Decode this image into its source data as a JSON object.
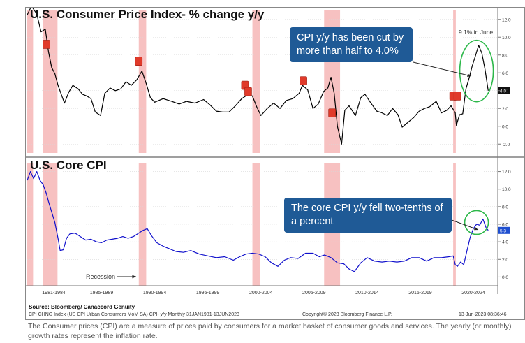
{
  "chart_data": [
    {
      "type": "line",
      "title": "U.S. Consumer Price Index- % change y/y",
      "ylim": [
        -3,
        13
      ],
      "yticks": [
        "12.0",
        "10.0",
        "8.0",
        "6.0",
        "4.0",
        "2.0",
        "0.0",
        "-2.0"
      ],
      "yticks_values": [
        12,
        10,
        8,
        6,
        4,
        2,
        0,
        -2
      ],
      "last_value_label": "4.0",
      "line_color": "#000000",
      "series": [
        {
          "x": [
            1980.0,
            1980.4,
            1980.9,
            1981.3,
            1981.7,
            1982.0,
            1982.3,
            1982.6,
            1982.9,
            1983.2,
            1983.5,
            1983.9,
            1984.3,
            1984.8,
            1985.2,
            1985.6,
            1986.0,
            1986.4,
            1986.9,
            1987.3,
            1987.8,
            1988.3,
            1988.8,
            1989.3,
            1989.8,
            1990.3,
            1990.8,
            1991.2,
            1991.6,
            1992.0,
            1992.8,
            1993.6,
            1994.3,
            1995.0,
            1995.8,
            1996.6,
            1997.2,
            1997.8,
            1998.4,
            1999.0,
            1999.6,
            2000.2,
            2000.7,
            2001.2,
            2001.6,
            2002.0,
            2002.6,
            2003.2,
            2003.8,
            2004.4,
            2005.0,
            2005.6,
            2005.9,
            2006.4,
            2006.9,
            2007.4,
            2007.9,
            2008.3,
            2008.6,
            2008.9,
            2009.2,
            2009.6,
            2009.9,
            2010.3,
            2010.9,
            2011.4,
            2011.8,
            2012.3,
            2012.9,
            2013.4,
            2013.9,
            2014.4,
            2014.9,
            2015.3,
            2015.9,
            2016.4,
            2016.9,
            2017.4,
            2017.9,
            2018.5,
            2019.0,
            2019.5,
            2019.9,
            2020.3,
            2020.4,
            2020.7,
            2021.0,
            2021.3,
            2021.6,
            2021.9,
            2022.2,
            2022.5,
            2022.8,
            2023.1,
            2023.4
          ],
          "values": [
            12.5,
            13.5,
            12.6,
            10.6,
            10.9,
            8.4,
            6.6,
            5.9,
            4.6,
            3.6,
            2.6,
            3.8,
            4.6,
            4.2,
            3.6,
            3.4,
            3.1,
            1.6,
            1.2,
            3.7,
            4.3,
            4.0,
            4.2,
            5.0,
            4.6,
            5.2,
            6.2,
            4.8,
            3.2,
            2.7,
            3.1,
            2.8,
            2.5,
            2.8,
            2.6,
            3.0,
            2.4,
            1.7,
            1.6,
            1.6,
            2.3,
            3.1,
            3.5,
            3.4,
            2.2,
            1.2,
            2.0,
            2.6,
            2.0,
            2.9,
            3.1,
            3.7,
            4.6,
            4.1,
            2.0,
            2.5,
            3.9,
            4.3,
            5.5,
            3.7,
            0.0,
            -2.0,
            1.8,
            2.3,
            1.2,
            3.2,
            3.6,
            2.7,
            1.7,
            1.5,
            1.2,
            2.0,
            1.3,
            -0.1,
            0.5,
            1.0,
            1.7,
            2.0,
            2.2,
            2.8,
            1.5,
            1.8,
            2.3,
            1.5,
            0.1,
            1.3,
            1.4,
            4.2,
            5.4,
            6.8,
            7.9,
            9.1,
            8.2,
            6.4,
            4.0
          ]
        }
      ]
    },
    {
      "type": "line",
      "title": "U.S. Core CPI",
      "ylim": [
        -1,
        13
      ],
      "yticks": [
        "12.0",
        "10.0",
        "8.0",
        "6.0",
        "4.0",
        "2.0",
        "0.0"
      ],
      "yticks_values": [
        12,
        10,
        8,
        6,
        4,
        2,
        0
      ],
      "last_value_label": "5.3",
      "line_color": "#1010cc",
      "series": [
        {
          "x": [
            1980.0,
            1980.3,
            1980.6,
            1980.9,
            1981.2,
            1981.5,
            1981.8,
            1982.0,
            1982.3,
            1982.6,
            1982.9,
            1983.1,
            1983.4,
            1983.7,
            1984.0,
            1984.5,
            1985.0,
            1985.5,
            1986.0,
            1986.5,
            1987.0,
            1987.5,
            1988.0,
            1988.5,
            1989.0,
            1989.5,
            1990.0,
            1990.5,
            1990.9,
            1991.3,
            1991.7,
            1992.2,
            1992.8,
            1993.4,
            1994.0,
            1994.7,
            1995.4,
            1996.2,
            1997.0,
            1997.8,
            1998.6,
            1999.4,
            2000.0,
            2000.6,
            2001.2,
            2001.8,
            2002.4,
            2003.0,
            2003.6,
            2004.2,
            2004.8,
            2005.5,
            2006.2,
            2006.9,
            2007.5,
            2008.0,
            2008.6,
            2009.2,
            2009.8,
            2010.3,
            2010.8,
            2011.4,
            2012.0,
            2012.7,
            2013.4,
            2014.1,
            2014.8,
            2015.5,
            2016.2,
            2016.9,
            2017.6,
            2018.3,
            2019.0,
            2019.7,
            2020.1,
            2020.3,
            2020.5,
            2020.8,
            2021.1,
            2021.4,
            2021.7,
            2022.0,
            2022.3,
            2022.6,
            2022.9,
            2023.2,
            2023.4
          ],
          "values": [
            11.0,
            12.0,
            11.2,
            12.0,
            11.0,
            10.5,
            9.5,
            8.6,
            7.4,
            6.2,
            4.4,
            3.0,
            3.1,
            4.4,
            4.9,
            5.0,
            4.6,
            4.2,
            4.3,
            4.0,
            3.9,
            4.2,
            4.3,
            4.4,
            4.6,
            4.4,
            4.6,
            5.0,
            5.3,
            5.5,
            4.7,
            3.9,
            3.5,
            3.2,
            2.9,
            2.8,
            3.0,
            2.6,
            2.4,
            2.2,
            2.3,
            1.9,
            2.3,
            2.6,
            2.7,
            2.6,
            2.3,
            1.6,
            1.2,
            1.9,
            2.2,
            2.1,
            2.7,
            2.7,
            2.3,
            2.5,
            2.2,
            1.6,
            1.5,
            0.9,
            0.6,
            1.6,
            2.2,
            1.8,
            1.7,
            1.8,
            1.7,
            1.8,
            2.2,
            2.2,
            1.8,
            2.2,
            2.2,
            2.3,
            2.4,
            1.4,
            1.2,
            1.7,
            1.4,
            3.0,
            4.5,
            5.5,
            6.0,
            5.9,
            6.6,
            5.6,
            5.3
          ]
        }
      ]
    }
  ],
  "recession_periods": [
    [
      1980.0,
      1980.55
    ],
    [
      1981.5,
      1982.85
    ],
    [
      1990.5,
      1991.2
    ],
    [
      2001.2,
      2001.9
    ],
    [
      2007.95,
      2009.45
    ],
    [
      2020.1,
      2020.35
    ]
  ],
  "x_axis": {
    "range": [
      1980,
      2024.3
    ],
    "tick_labels": [
      {
        "label": "1981-1984",
        "x": 1982.5
      },
      {
        "label": "1985-1989",
        "x": 1987.0
      },
      {
        "label": "1990-1994",
        "x": 1992.0
      },
      {
        "label": "1995-1999",
        "x": 1997.0
      },
      {
        "label": "2000-2004",
        "x": 2002.0
      },
      {
        "label": "2005-2009",
        "x": 2007.0
      },
      {
        "label": "2010-2014",
        "x": 2012.0
      },
      {
        "label": "2015-2019",
        "x": 2017.0
      },
      {
        "label": "2020-2024",
        "x": 2022.0
      }
    ]
  },
  "markers": [
    {
      "x": 1981.8,
      "y": 9.2
    },
    {
      "x": 1990.5,
      "y": 7.3
    },
    {
      "x": 2000.5,
      "y": 4.6
    },
    {
      "x": 2000.8,
      "y": 3.9
    },
    {
      "x": 2006.0,
      "y": 5.1
    },
    {
      "x": 2008.7,
      "y": 1.5
    },
    {
      "x": 2020.1,
      "y": 3.4
    },
    {
      "x": 2020.5,
      "y": 3.4
    }
  ],
  "annotations": {
    "callout_top": "CPI y/y has been cut by more than half to 4.0%",
    "peak_label": "9.1% in June",
    "callout_bottom": "The core CPI  y/y  fell two-tenths of a percent",
    "recession_label": "Recession"
  },
  "footer": {
    "source": "Source: Bloomberg/ Canaccord Genuity",
    "index_desc": "CPI CHNG Index (US CPI Urban Consumers MoM SA) CPI- y/y  Monthly 31JAN1981-13JUN2023",
    "copyright": "Copyright© 2023 Bloomberg Finance L.P.",
    "timestamp": "13-Jun-2023 08:36:46",
    "caption": "The Consumer prices (CPI) are a measure of prices paid by consumers for a market basket of consumer goods and services. The yearly (or monthly) growth rates represent the inflation rate."
  },
  "colors": {
    "recession": "#f6b6b6",
    "callout_bg": "#1f5a96",
    "ellipse": "#2db84a",
    "marker": "#e03a2a",
    "core_line": "#1010cc"
  }
}
